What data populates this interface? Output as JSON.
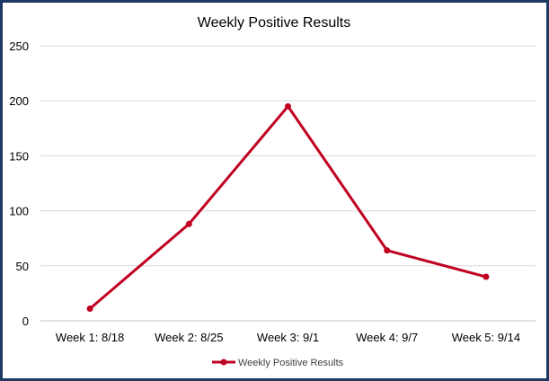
{
  "chart_data": {
    "type": "line",
    "title": "Weekly Positive Results",
    "categories": [
      "Week 1: 8/18",
      "Week 2: 8/25",
      "Week 3: 9/1",
      "Week 4: 9/7",
      "Week 5: 9/14"
    ],
    "series": [
      {
        "name": "Weekly Positive Results",
        "values": [
          11,
          88,
          195,
          64,
          40
        ]
      }
    ],
    "ylim": [
      0,
      250
    ],
    "yticks": [
      "0",
      "50",
      "100",
      "150",
      "200",
      "250"
    ],
    "grid": true,
    "legend_position": "bottom",
    "line_color": "#c00020",
    "frame_color": "#1f3864",
    "grid_color": "#d9d9d9"
  }
}
